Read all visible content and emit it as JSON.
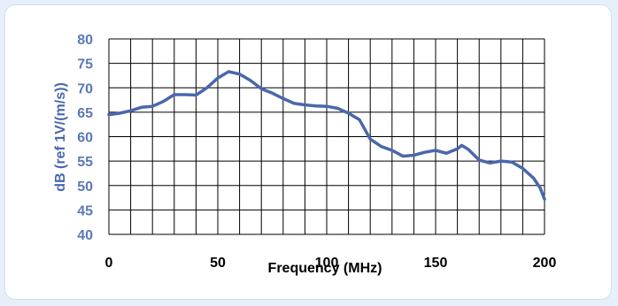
{
  "chart_data": {
    "type": "line",
    "title": "",
    "xlabel": "Frequency (MHz)",
    "ylabel": "dB (ref 1V/(m/s))",
    "xlim": [
      0,
      200
    ],
    "ylim": [
      40,
      80
    ],
    "x_ticks": [
      "0",
      "50",
      "100",
      "150",
      "200"
    ],
    "y_ticks": [
      "40",
      "45",
      "50",
      "55",
      "60",
      "65",
      "70",
      "75",
      "80"
    ],
    "grid": true,
    "legend": "none",
    "colors": {
      "line": "#4a67ac",
      "tick_text": "#5b78b8",
      "axis_title": "#4a67ac",
      "grid": "#000000",
      "background": "#e7f0fa"
    },
    "series": [
      {
        "x": [
          0,
          5,
          10,
          15,
          20,
          25,
          30,
          35,
          40,
          45,
          50,
          55,
          60,
          65,
          70,
          75,
          80,
          85,
          90,
          95,
          100,
          105,
          110,
          115,
          120,
          125,
          130,
          135,
          140,
          145,
          150,
          155,
          160,
          162,
          165,
          170,
          175,
          180,
          185,
          190,
          195,
          198,
          200
        ],
        "values": [
          64.5,
          64.8,
          65.3,
          66.0,
          66.2,
          67.2,
          68.6,
          68.6,
          68.5,
          70.0,
          72.0,
          73.3,
          72.8,
          71.5,
          69.8,
          68.9,
          67.8,
          66.8,
          66.5,
          66.3,
          66.2,
          65.8,
          64.8,
          63.5,
          59.5,
          58.0,
          57.2,
          56.0,
          56.2,
          56.8,
          57.2,
          56.6,
          57.5,
          58.2,
          57.4,
          55.2,
          54.6,
          55.0,
          54.8,
          53.5,
          51.5,
          49.5,
          47.2
        ]
      }
    ]
  }
}
